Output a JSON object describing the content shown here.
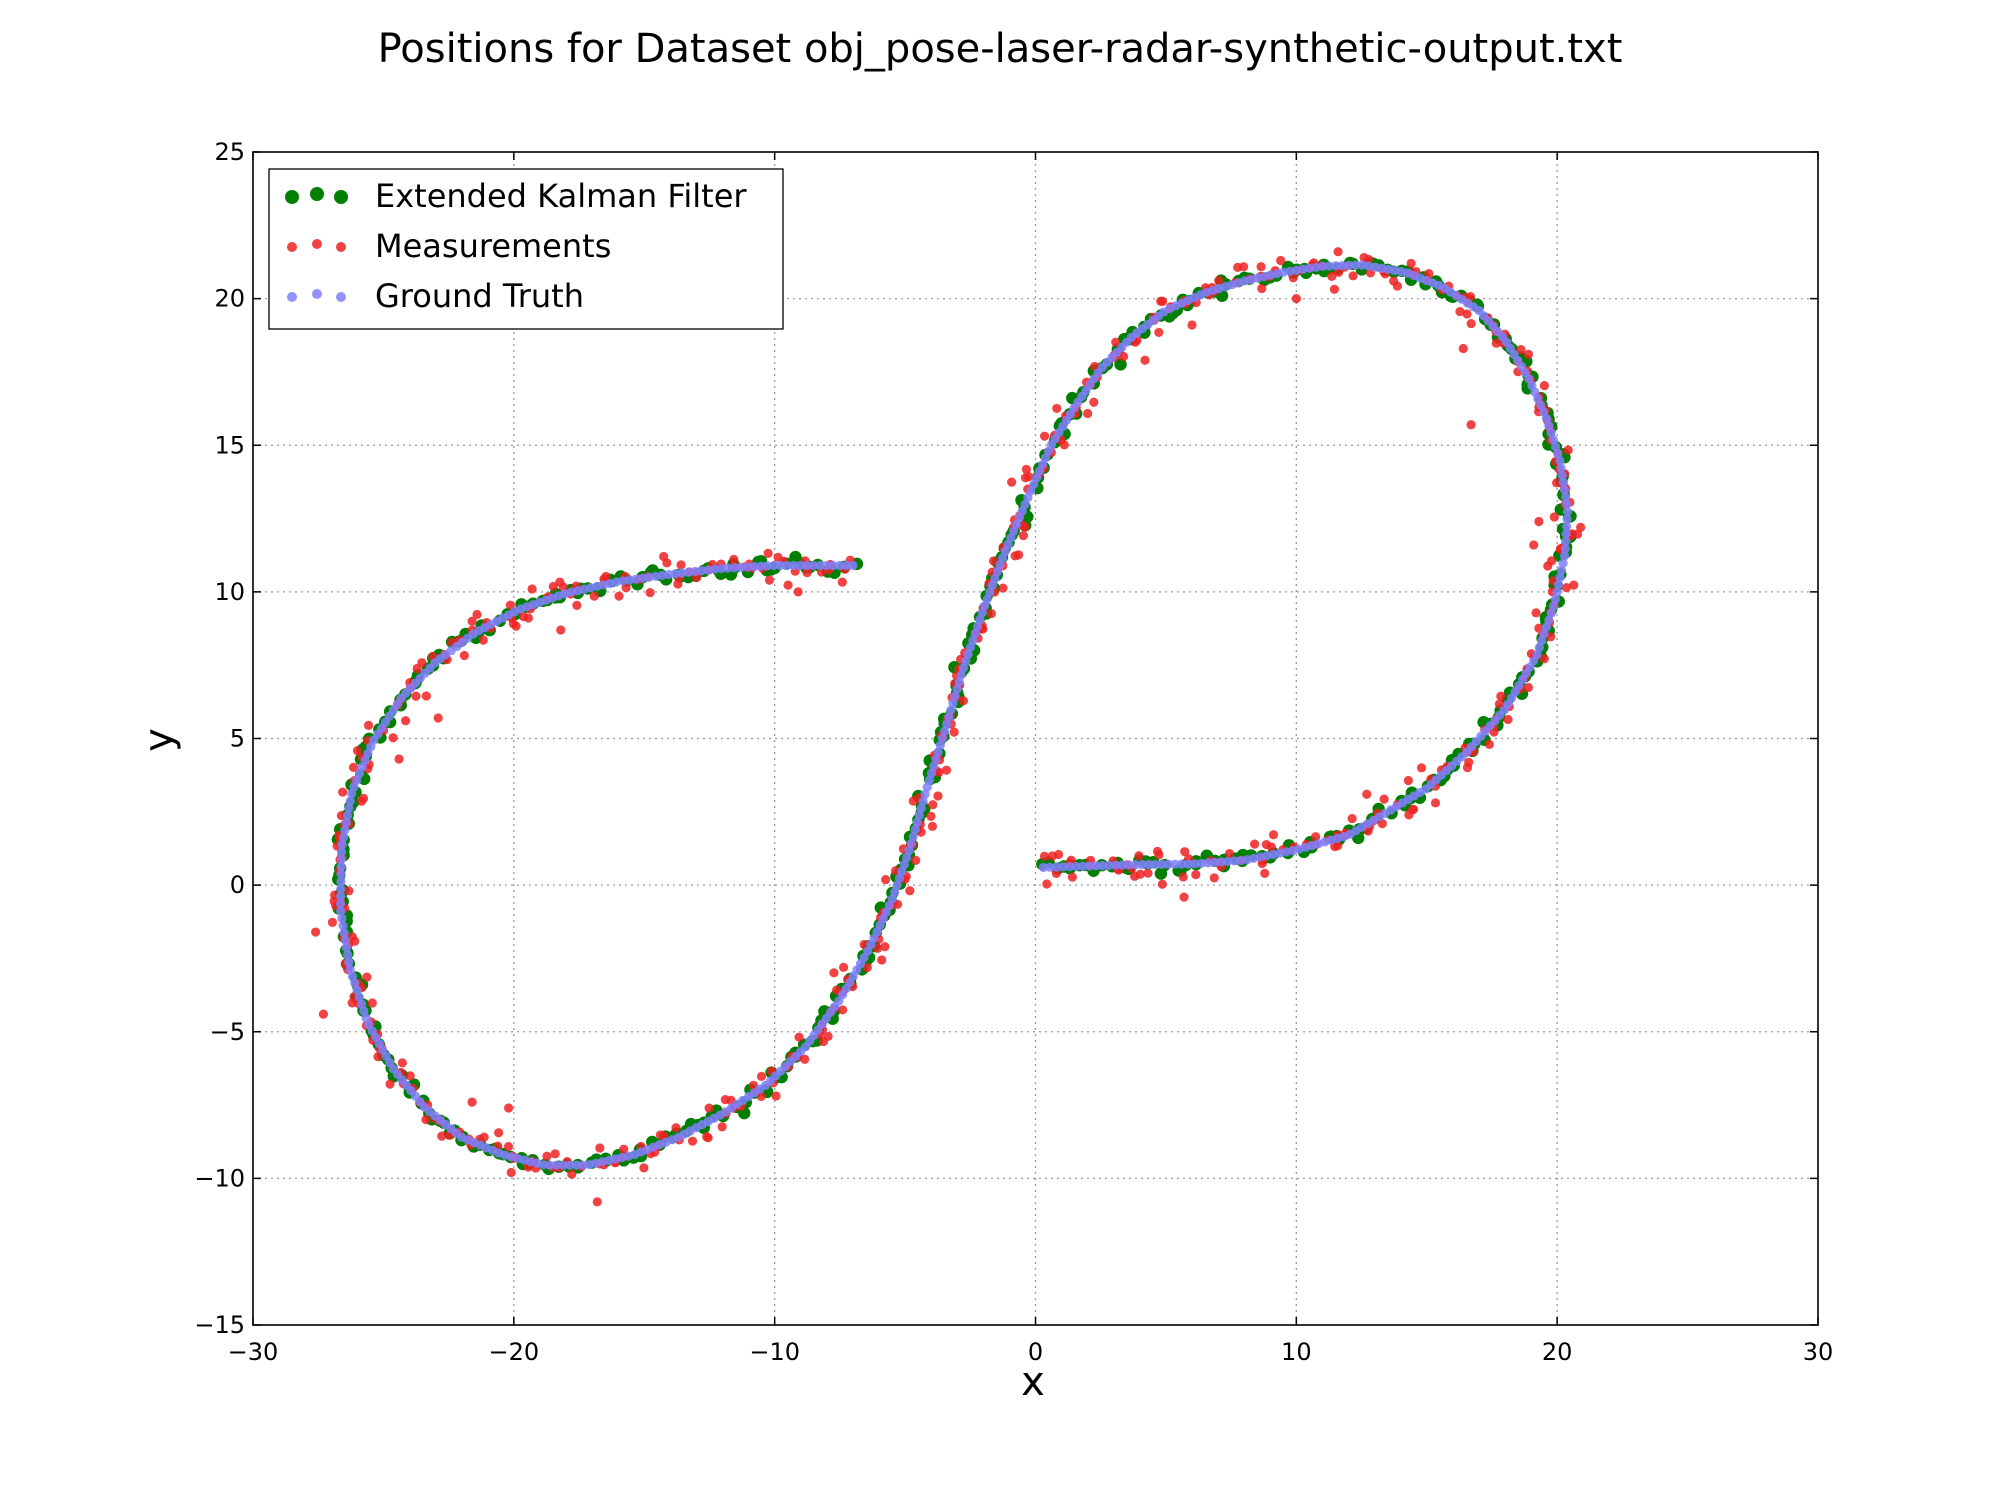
{
  "chart_data": {
    "type": "scatter",
    "title": "Positions for Dataset obj_pose-laser-radar-synthetic-output.txt",
    "xlabel": "x",
    "ylabel": "y",
    "xlim": [
      -30,
      30
    ],
    "ylim": [
      -15,
      25
    ],
    "xticks": [
      -30,
      -20,
      -10,
      0,
      10,
      20,
      30
    ],
    "yticks": [
      -15,
      -10,
      -5,
      0,
      5,
      10,
      15,
      20,
      25
    ],
    "xtick_labels": [
      "−30",
      "−20",
      "−10",
      "0",
      "10",
      "20",
      "30"
    ],
    "ytick_labels": [
      "−15",
      "−10",
      "−5",
      "0",
      "5",
      "10",
      "15",
      "20",
      "25"
    ],
    "grid": true,
    "legend_position": "upper-left",
    "trajectory": [
      [
        0.3,
        0.6
      ],
      [
        2.0,
        0.65
      ],
      [
        4.0,
        0.7
      ],
      [
        6.0,
        0.72
      ],
      [
        8.0,
        0.85
      ],
      [
        10.0,
        1.2
      ],
      [
        12.0,
        1.7
      ],
      [
        13.5,
        2.5
      ],
      [
        15.0,
        3.3
      ],
      [
        16.5,
        4.5
      ],
      [
        18.0,
        6.0
      ],
      [
        19.2,
        7.8
      ],
      [
        19.9,
        9.6
      ],
      [
        20.3,
        11.3
      ],
      [
        20.4,
        12.8
      ],
      [
        20.1,
        14.5
      ],
      [
        19.6,
        15.9
      ],
      [
        18.9,
        17.3
      ],
      [
        18.0,
        18.6
      ],
      [
        17.0,
        19.6
      ],
      [
        15.6,
        20.4
      ],
      [
        14.2,
        20.9
      ],
      [
        12.5,
        21.15
      ],
      [
        11.0,
        21.1
      ],
      [
        9.5,
        20.9
      ],
      [
        8.0,
        20.6
      ],
      [
        6.5,
        20.2
      ],
      [
        5.0,
        19.6
      ],
      [
        3.7,
        18.7
      ],
      [
        2.5,
        17.6
      ],
      [
        1.5,
        16.3
      ],
      [
        0.6,
        15.0
      ],
      [
        -0.3,
        13.2
      ],
      [
        -1.2,
        11.3
      ],
      [
        -2.0,
        9.4
      ],
      [
        -2.8,
        7.3
      ],
      [
        -3.5,
        5.2
      ],
      [
        -4.2,
        3.2
      ],
      [
        -4.8,
        1.3
      ],
      [
        -5.5,
        -0.5
      ],
      [
        -6.4,
        -2.2
      ],
      [
        -7.5,
        -3.9
      ],
      [
        -8.8,
        -5.5
      ],
      [
        -10.3,
        -6.8
      ],
      [
        -12.0,
        -7.8
      ],
      [
        -13.7,
        -8.6
      ],
      [
        -15.4,
        -9.2
      ],
      [
        -17.2,
        -9.55
      ],
      [
        -18.8,
        -9.55
      ],
      [
        -20.4,
        -9.2
      ],
      [
        -22.0,
        -8.6
      ],
      [
        -23.4,
        -7.6
      ],
      [
        -24.6,
        -6.3
      ],
      [
        -25.6,
        -4.7
      ],
      [
        -26.3,
        -2.8
      ],
      [
        -26.65,
        -0.8
      ],
      [
        -26.6,
        1.3
      ],
      [
        -26.2,
        3.2
      ],
      [
        -25.4,
        4.9
      ],
      [
        -24.3,
        6.4
      ],
      [
        -23.0,
        7.6
      ],
      [
        -21.5,
        8.6
      ],
      [
        -19.8,
        9.4
      ],
      [
        -18.0,
        9.95
      ],
      [
        -16.0,
        10.35
      ],
      [
        -14.0,
        10.6
      ],
      [
        -12.0,
        10.8
      ],
      [
        -10.0,
        10.9
      ],
      [
        -8.0,
        10.9
      ],
      [
        -7.0,
        10.9
      ]
    ],
    "series": [
      {
        "name": "Extended Kalman Filter",
        "color": "#007f00",
        "marker": "circle-large",
        "samples": 500,
        "noise_sd": 0.12,
        "alpha": 1.0
      },
      {
        "name": "Measurements",
        "color": "#ee2222",
        "marker": "circle",
        "samples": 500,
        "noise_sd": 0.28,
        "alpha": 0.85,
        "outliers": [
          [
            -16.8,
            -10.8
          ],
          [
            -20.1,
            -9.8
          ],
          [
            -20.2,
            -7.6
          ],
          [
            -21.6,
            -7.4
          ],
          [
            -27.3,
            -4.4
          ],
          [
            -27.6,
            -1.6
          ],
          [
            -22.9,
            5.7
          ],
          [
            -24.4,
            4.3
          ],
          [
            -18.2,
            8.7
          ],
          [
            -21.6,
            9.0
          ],
          [
            -19.3,
            10.1
          ],
          [
            -9.1,
            10.0
          ],
          [
            -10.2,
            10.4
          ],
          [
            10.0,
            20.0
          ],
          [
            11.6,
            21.6
          ],
          [
            9.4,
            21.3
          ],
          [
            14.4,
            21.2
          ],
          [
            16.4,
            18.3
          ],
          [
            6.0,
            19.1
          ],
          [
            4.2,
            17.9
          ],
          [
            19.3,
            12.4
          ],
          [
            20.9,
            12.2
          ],
          [
            19.1,
            11.6
          ],
          [
            18.9,
            18.1
          ],
          [
            16.7,
            15.7
          ],
          [
            3.8,
            0.3
          ],
          [
            8.4,
            1.4
          ],
          [
            14.8,
            4.0
          ],
          [
            17.4,
            4.8
          ],
          [
            12.7,
            3.1
          ],
          [
            0.8,
            0.4
          ],
          [
            -5.0,
            0.2
          ],
          [
            -3.2,
            6.4
          ],
          [
            -3.8,
            3.9
          ],
          [
            -0.6,
            12.6
          ]
        ]
      },
      {
        "name": "Ground Truth",
        "color": "#8080ff",
        "marker": "circle",
        "samples": 500,
        "noise_sd": 0.0,
        "alpha": 0.85
      }
    ]
  }
}
